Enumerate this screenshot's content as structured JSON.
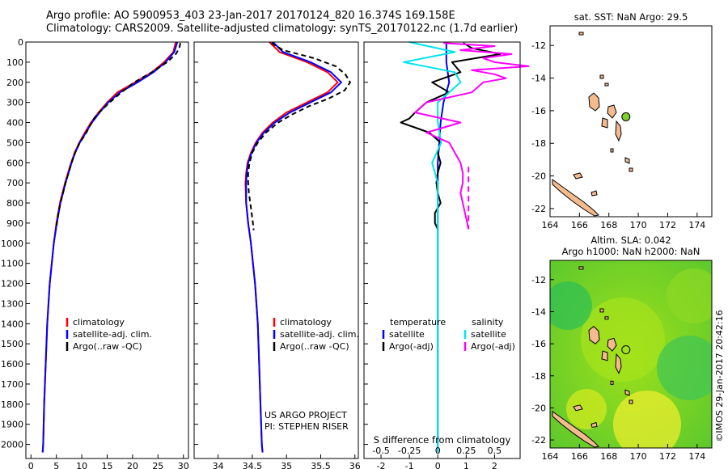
{
  "header": {
    "line1": "Argo profile: AO 5900953_403 23-Jan-2017 20170124_820 16.374S 169.158E",
    "line2": "Climatology: CARS2009. Satellite-adjusted climatology: synTS_20170122.nc (1.7d earlier)"
  },
  "watermark": "©IMOS 29-Jan-2017 20:42:16",
  "colors": {
    "climatology": "#ff0000",
    "satellite": "#0000ff",
    "argo": "#000000",
    "sal_satellite": "#00e5ee",
    "sal_argo": "#ff00ff",
    "land": "#f4bb8f",
    "float": "#7fcf2f"
  },
  "chart_data": [
    {
      "id": "temperature",
      "type": "line",
      "xlabel": "temperature (deg C)",
      "ylabel": "",
      "xlim": [
        -1,
        31
      ],
      "ylim": [
        2070,
        0
      ],
      "xticks": [
        "0",
        "5",
        "10",
        "15",
        "20",
        "25",
        "30"
      ],
      "yticks": [
        "0",
        "100",
        "200",
        "300",
        "400",
        "500",
        "600",
        "700",
        "800",
        "900",
        "1000",
        "1100",
        "1200",
        "1300",
        "1400",
        "1500",
        "1600",
        "1700",
        "1800",
        "1900",
        "2000"
      ],
      "legend": [
        "climatology",
        "satellite-adj. clim.",
        "Argo(..raw -QC)"
      ],
      "series": [
        {
          "name": "climatology",
          "color": "#ff0000",
          "depth": [
            0,
            50,
            100,
            150,
            200,
            250,
            300,
            350,
            400,
            450,
            500,
            550,
            600,
            650,
            700,
            750,
            800,
            900,
            1000,
            1200,
            1400,
            1600,
            1800,
            2000,
            2040
          ],
          "values": [
            28.5,
            28,
            26.2,
            23.8,
            20.5,
            17,
            15,
            13.3,
            11.8,
            10.6,
            9.5,
            8.6,
            7.9,
            7.3,
            6.7,
            6.2,
            5.7,
            5.0,
            4.5,
            3.7,
            3.2,
            2.9,
            2.6,
            2.4,
            2.3
          ]
        },
        {
          "name": "satellite-adj. clim.",
          "color": "#0000ff",
          "depth": [
            0,
            50,
            100,
            150,
            200,
            250,
            300,
            350,
            400,
            450,
            500,
            550,
            600,
            650,
            700,
            750,
            800,
            900,
            1000,
            1200,
            1400,
            1600,
            1800,
            2000,
            2040
          ],
          "values": [
            28.8,
            28.2,
            26.5,
            24.1,
            21,
            17.5,
            15.2,
            13.5,
            12,
            10.8,
            9.6,
            8.7,
            8,
            7.4,
            6.8,
            6.3,
            5.8,
            5.1,
            4.5,
            3.7,
            3.2,
            2.9,
            2.6,
            2.4,
            2.3
          ]
        },
        {
          "name": "Argo(..raw -QC)",
          "color": "#000000",
          "depth": [
            5,
            30,
            60,
            100,
            150,
            200,
            250,
            300,
            350,
            380,
            400,
            420,
            460,
            500,
            550,
            600,
            650,
            700,
            750,
            800,
            850,
            900,
            930
          ],
          "values": [
            29.4,
            29.2,
            28.5,
            26.8,
            23.8,
            20.3,
            17.8,
            15.5,
            13.4,
            12.4,
            12,
            11.5,
            10.7,
            9.6,
            8.7,
            8,
            7.4,
            6.8,
            6.3,
            5.8,
            5.4,
            5.1,
            5
          ]
        }
      ]
    },
    {
      "id": "salinity",
      "type": "line",
      "xlabel": "salinity",
      "ylabel": "",
      "xlim": [
        33.65,
        36.05
      ],
      "ylim": [
        2070,
        0
      ],
      "xticks": [
        "34",
        "34.5",
        "35",
        "35.5",
        "36"
      ],
      "legend": [
        "climatology",
        "satellite-adj. clim.",
        "Argo(..raw -QC)"
      ],
      "annotation": [
        "US ARGO PROJECT",
        "PI: STEPHEN RISER"
      ],
      "series": [
        {
          "name": "climatology",
          "color": "#ff0000",
          "depth": [
            0,
            50,
            100,
            150,
            200,
            250,
            300,
            350,
            400,
            450,
            500,
            550,
            600,
            650,
            700,
            800,
            900,
            1000,
            1200,
            1400,
            1600,
            1800,
            2000,
            2040
          ],
          "values": [
            34.75,
            34.9,
            35.3,
            35.6,
            35.75,
            35.6,
            35.3,
            35.0,
            34.8,
            34.65,
            34.55,
            34.48,
            34.43,
            34.41,
            34.4,
            34.41,
            34.44,
            34.48,
            34.54,
            34.58,
            34.6,
            34.62,
            34.64,
            34.65
          ]
        },
        {
          "name": "satellite-adj. clim.",
          "color": "#0000ff",
          "depth": [
            0,
            50,
            100,
            150,
            200,
            250,
            300,
            350,
            400,
            450,
            500,
            550,
            600,
            650,
            700,
            800,
            900,
            1000,
            1200,
            1400,
            1600,
            1800,
            2000,
            2040
          ],
          "values": [
            34.8,
            34.95,
            35.35,
            35.65,
            35.8,
            35.65,
            35.35,
            35.05,
            34.83,
            34.67,
            34.56,
            34.49,
            34.44,
            34.42,
            34.41,
            34.41,
            34.44,
            34.48,
            34.54,
            34.58,
            34.6,
            34.62,
            34.64,
            34.65
          ]
        },
        {
          "name": "Argo(..raw -QC)",
          "color": "#000000",
          "depth": [
            5,
            40,
            80,
            120,
            160,
            200,
            240,
            280,
            320,
            360,
            400,
            450,
            500,
            550,
            600,
            650,
            700,
            750,
            800,
            850,
            900,
            935
          ],
          "values": [
            34.78,
            34.95,
            35.4,
            35.72,
            35.86,
            35.93,
            35.85,
            35.62,
            35.32,
            35.08,
            34.88,
            34.7,
            34.58,
            34.5,
            34.46,
            34.44,
            34.44,
            34.45,
            34.47,
            34.49,
            34.51,
            34.52
          ]
        }
      ]
    },
    {
      "id": "difference",
      "type": "line",
      "xlabel": "T difference from climatology",
      "xlabel2": "S difference from climatology",
      "xlim": [
        -2.6,
        2.9
      ],
      "ylim": [
        2070,
        0
      ],
      "xticks": [
        "-2",
        "-1",
        "0",
        "1",
        "2"
      ],
      "xticks2": [
        "-0.5",
        "-0.25",
        "0",
        "0.25",
        "0.5"
      ],
      "legend_titles": [
        "temperature",
        "salinity"
      ],
      "legend": [
        "satellite",
        "Argo(-adj)",
        "satellite",
        "Argo(-adj)"
      ],
      "series": [
        {
          "name": "satellite",
          "group": "temperature",
          "color": "#0000ff",
          "depth": [
            0,
            100,
            200,
            300,
            400,
            500,
            600,
            700,
            800,
            900,
            1000,
            1200,
            1400,
            1600,
            1800,
            2000,
            2040
          ],
          "values": [
            0.3,
            0.3,
            0.4,
            0.2,
            0.1,
            0.05,
            0,
            0,
            0,
            0,
            0,
            0,
            0,
            0,
            0,
            0,
            0
          ]
        },
        {
          "name": "Argo(-adj)",
          "group": "temperature",
          "color": "#000000",
          "depth": [
            5,
            30,
            60,
            100,
            150,
            200,
            250,
            300,
            350,
            380,
            400,
            420,
            450,
            500,
            550,
            600,
            650,
            700,
            750,
            800,
            850,
            900,
            930
          ],
          "values": [
            0.9,
            1.2,
            2.2,
            0.5,
            0.8,
            -0.2,
            0.4,
            -0.4,
            -0.8,
            -1.0,
            -1.3,
            -0.9,
            -0.3,
            0.1,
            0,
            0.1,
            0,
            -0.05,
            0,
            0.1,
            -0.1,
            -0.1,
            0
          ]
        },
        {
          "name": "satellite",
          "group": "salinity",
          "color": "#00e5ee",
          "depth": [
            0,
            50,
            100,
            150,
            200,
            300,
            400,
            500,
            600,
            700,
            800,
            1000,
            1200,
            1400,
            1600,
            1800,
            2000,
            2040
          ],
          "values": [
            -0.25,
            0.15,
            -0.3,
            0.15,
            0.2,
            0.0,
            0.0,
            0.03,
            -0.05,
            0,
            0,
            0,
            0,
            0,
            0,
            0,
            0,
            0
          ]
        },
        {
          "name": "Argo(-adj)",
          "group": "salinity",
          "color": "#ff00ff",
          "depth": [
            5,
            20,
            40,
            60,
            80,
            100,
            120,
            140,
            160,
            180,
            200,
            250,
            300,
            350,
            400,
            450,
            500,
            550,
            600,
            650,
            700,
            750,
            800,
            850,
            900,
            930
          ],
          "values": [
            0.05,
            0.5,
            0.2,
            0.65,
            0.4,
            0.5,
            0.8,
            0.3,
            0.5,
            0.6,
            0.4,
            0.3,
            -0.1,
            -0.2,
            0.2,
            -0.1,
            0.1,
            0.15,
            0.2,
            0.22,
            0.22,
            0.2,
            0.22,
            0.24,
            0.26,
            0.27
          ]
        }
      ]
    },
    {
      "id": "sst_map",
      "type": "map",
      "title": "sat. SST: NaN Argo: 29.5",
      "xlim": [
        164,
        175
      ],
      "ylim": [
        -22.5,
        -10.8
      ],
      "xticks": [
        "164",
        "166",
        "168",
        "170",
        "172",
        "174"
      ],
      "yticks": [
        "-12",
        "-14",
        "-16",
        "-18",
        "-20",
        "-22"
      ],
      "argo_position": {
        "lon": 169.158,
        "lat": -16.374
      }
    },
    {
      "id": "sla_map",
      "type": "map",
      "title": "Altim. SLA: 0.042",
      "title2": "Argo h1000: NaN h2000: NaN",
      "xlim": [
        164,
        175
      ],
      "ylim": [
        -22.5,
        -10.8
      ],
      "xticks": [
        "164",
        "166",
        "168",
        "170",
        "172",
        "174"
      ],
      "yticks": [
        "-12",
        "-14",
        "-16",
        "-18",
        "-20",
        "-22"
      ],
      "argo_position": {
        "lon": 169.158,
        "lat": -16.374
      }
    }
  ]
}
